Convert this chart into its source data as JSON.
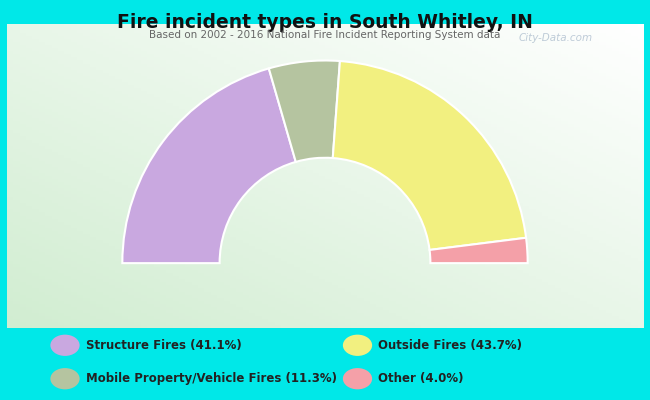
{
  "title": "Fire incident types in South Whitley, IN",
  "subtitle": "Based on 2002 - 2016 National Fire Incident Reporting System data",
  "slices": [
    {
      "label": "Structure Fires (41.1%)",
      "value": 41.1,
      "color": "#c9a8e0"
    },
    {
      "label": "Mobile Property/Vehicle Fires (11.3%)",
      "value": 11.3,
      "color": "#b5c4a0"
    },
    {
      "label": "Outside Fires (43.7%)",
      "value": 43.7,
      "color": "#f2f080"
    },
    {
      "label": "Other (4.0%)",
      "value": 4.0,
      "color": "#f4a0a8"
    }
  ],
  "background_color": "#00e8e8",
  "chart_bg_left": "#d0ecd0",
  "chart_bg_right": "#f0f8f0",
  "title_color": "#111111",
  "subtitle_color": "#666666",
  "watermark": "City-Data.com",
  "R_outer": 1.0,
  "R_inner": 0.52,
  "legend": [
    {
      "col": 0,
      "row": 0,
      "slice_idx": 0
    },
    {
      "col": 0,
      "row": 1,
      "slice_idx": 2
    },
    {
      "col": 1,
      "row": 0,
      "slice_idx": 1
    },
    {
      "col": 1,
      "row": 1,
      "slice_idx": 3
    }
  ]
}
